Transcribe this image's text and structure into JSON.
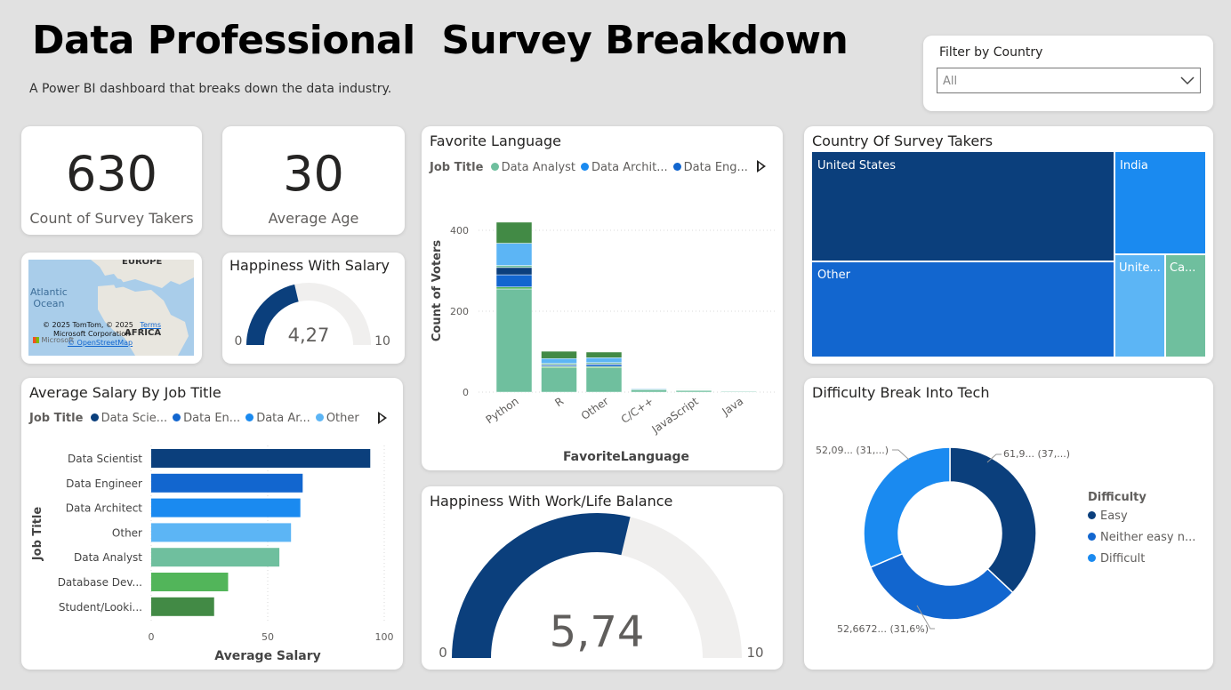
{
  "header": {
    "title": "Data Professional  Survey Breakdown",
    "subtitle": "A Power BI dashboard that breaks down the data industry."
  },
  "filter": {
    "label": "Filter by Country",
    "value": "All"
  },
  "kpi_count": {
    "value": "630",
    "label": "Count of Survey Takers"
  },
  "kpi_age": {
    "value": "30",
    "label": "Average Age"
  },
  "map": {
    "labels": {
      "europe": "EUROPE",
      "atlantic": "Atlantic\nOcean",
      "africa": "AFRICA"
    },
    "attribution": {
      "line1": "© 2025 TomTom, © 2025",
      "terms": "Terms",
      "line2": "Microsoft Corporation",
      "osm": "© OpenStreetMap",
      "brand": "Microsoft"
    }
  },
  "colors": {
    "navy": "#0b3f7c",
    "blue": "#1266cf",
    "bright_blue": "#1a8af0",
    "light_blue": "#5cb5f5",
    "teal": "#6fbf9e",
    "green": "#52b55a",
    "dark_green": "#428a45",
    "gauge_bg": "#f0efee"
  },
  "chart_data": [
    {
      "id": "happiness_salary",
      "type": "gauge",
      "title": "Happiness With Salary",
      "value": 4.27,
      "value_label": "4,27",
      "min": 0,
      "max": 10,
      "min_label": "0",
      "max_label": "10"
    },
    {
      "id": "avg_salary",
      "type": "bar",
      "orientation": "horizontal",
      "title": "Average Salary By Job Title",
      "legend_title": "Job Title",
      "legend": [
        {
          "name": "Data Scie...",
          "color": "#0b3f7c"
        },
        {
          "name": "Data En...",
          "color": "#1266cf"
        },
        {
          "name": "Data Ar...",
          "color": "#1a8af0"
        },
        {
          "name": "Other",
          "color": "#5cb5f5"
        }
      ],
      "categories": [
        "Data Scientist",
        "Data Engineer",
        "Data Architect",
        "Other",
        "Data Analyst",
        "Database Dev...",
        "Student/Looki..."
      ],
      "values": [
        94,
        65,
        64,
        60,
        55,
        33,
        27
      ],
      "colors": [
        "#0b3f7c",
        "#1266cf",
        "#1a8af0",
        "#5cb5f5",
        "#6fbf9e",
        "#52b55a",
        "#428a45"
      ],
      "xlabel": "Average Salary",
      "ylabel": "Job Title",
      "xlim": [
        0,
        100
      ],
      "xticks": [
        "0",
        "50",
        "100"
      ]
    },
    {
      "id": "fav_language",
      "type": "bar",
      "stacked": true,
      "title": "Favorite Language",
      "legend_title": "Job Title",
      "legend": [
        {
          "name": "Data Analyst",
          "color": "#6fbf9e"
        },
        {
          "name": "Data Archit...",
          "color": "#1a8af0"
        },
        {
          "name": "Data Eng...",
          "color": "#1266cf"
        }
      ],
      "categories": [
        "Python",
        "R",
        "Other",
        "C/C++",
        "JavaScript",
        "Java"
      ],
      "series": [
        {
          "values": [
            255,
            60,
            60,
            6,
            4,
            2
          ],
          "color": "#6fbf9e"
        },
        {
          "values": [
            5,
            3,
            3,
            1,
            1,
            0
          ],
          "color": "#52b55a"
        },
        {
          "values": [
            30,
            3,
            5,
            0,
            1,
            0
          ],
          "color": "#1266cf"
        },
        {
          "values": [
            18,
            2,
            2,
            0,
            0,
            0
          ],
          "color": "#0b3f7c"
        },
        {
          "values": [
            5,
            3,
            3,
            0,
            0,
            0
          ],
          "color": "#6fbf9e"
        },
        {
          "values": [
            55,
            12,
            12,
            2,
            1,
            1
          ],
          "color": "#5cb5f5"
        },
        {
          "values": [
            52,
            18,
            14,
            1,
            1,
            0
          ],
          "color": "#428a45"
        }
      ],
      "xlabel": "FavoriteLanguage",
      "ylabel": "Count of Voters",
      "ylim": [
        0,
        470
      ],
      "yticks": [
        0,
        200,
        400
      ]
    },
    {
      "id": "country",
      "type": "treemap",
      "title": "Country Of Survey Takers",
      "items": [
        {
          "name": "United States",
          "color": "#0b3f7c"
        },
        {
          "name": "Other",
          "color": "#1266cf"
        },
        {
          "name": "India",
          "color": "#1a8af0"
        },
        {
          "name": "Unite...",
          "color": "#5cb5f5"
        },
        {
          "name": "Ca...",
          "color": "#6fbf9e"
        }
      ]
    },
    {
      "id": "worklife",
      "type": "gauge",
      "title": "Happiness With Work/Life Balance",
      "value": 5.74,
      "value_label": "5,74",
      "min": 0,
      "max": 10,
      "min_label": "0",
      "max_label": "10"
    },
    {
      "id": "difficulty",
      "type": "pie",
      "donut": true,
      "title": "Difficulty Break Into Tech",
      "legend_title": "Difficulty",
      "slices": [
        {
          "name": "Easy",
          "value": 37,
          "color": "#0b3f7c",
          "label": "61,9... (37,...)"
        },
        {
          "name": "Neither easy n...",
          "value": 31.6,
          "color": "#1266cf",
          "label": "52,6672... (31,6%)"
        },
        {
          "name": "Difficult",
          "value": 31.4,
          "color": "#1a8af0",
          "label": "52,09... (31,...)"
        }
      ]
    }
  ]
}
